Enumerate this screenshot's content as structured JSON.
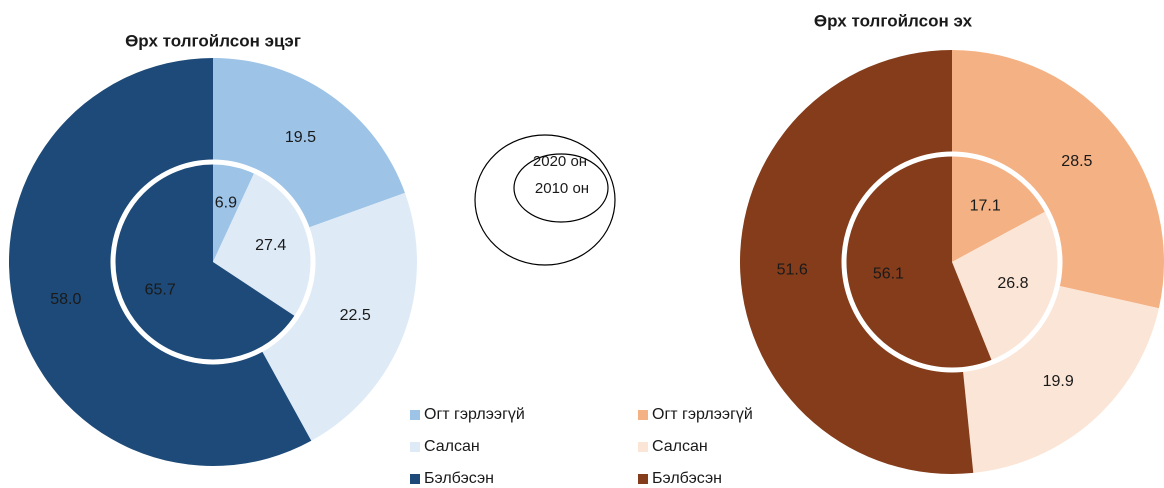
{
  "chart_data": [
    {
      "type": "pie",
      "title": "Өрх толгойлсон эцэг",
      "categories": [
        "Огт гэрлээгүй",
        "Салсан",
        "Бэлбэсэн"
      ],
      "colors": [
        "#9dc3e6",
        "#deebf7",
        "#1d4a78"
      ],
      "series": [
        {
          "ring": "outer",
          "values": [
            19.5,
            22.5,
            58.0
          ],
          "value_labels": [
            "19.5",
            "22.5",
            "58.0"
          ]
        },
        {
          "ring": "inner",
          "values": [
            6.9,
            27.4,
            65.7
          ],
          "value_labels": [
            "6.9",
            "27.4",
            "65.7"
          ]
        }
      ]
    },
    {
      "type": "pie",
      "title": "Өрх толгойлсон эх",
      "categories": [
        "Огт гэрлээгүй",
        "Салсан",
        "Бэлбэсэн"
      ],
      "colors": [
        "#f4b183",
        "#fbe5d6",
        "#843c1a"
      ],
      "series": [
        {
          "ring": "outer",
          "values": [
            28.5,
            19.9,
            51.6
          ],
          "value_labels": [
            "28.5",
            "19.9",
            "51.6"
          ]
        },
        {
          "ring": "inner",
          "values": [
            17.1,
            26.8,
            56.1
          ],
          "value_labels": [
            "17.1",
            "26.8",
            "56.1"
          ]
        }
      ]
    }
  ],
  "ring_key": {
    "outer": "2020 он",
    "inner": "2010 он"
  }
}
